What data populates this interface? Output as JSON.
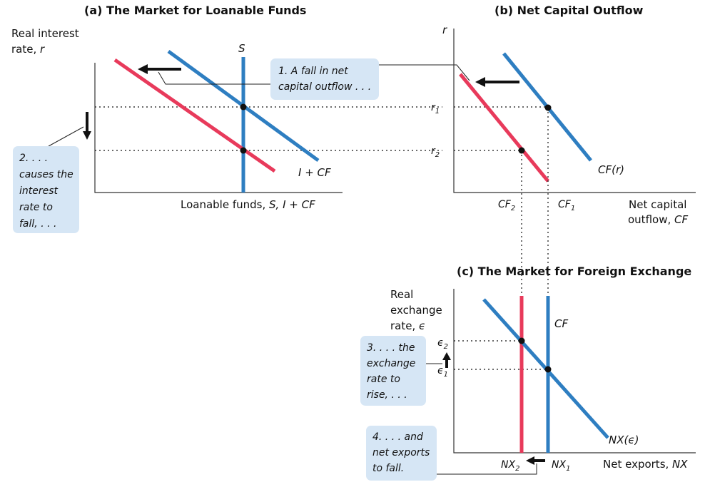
{
  "panel_a": {
    "title": "(a) The Market for Loanable Funds",
    "ylabel_line1": "Real interest",
    "ylabel_line2": "rate, ",
    "ylabel_var": "r",
    "xlabel_text": "Loanable funds, ",
    "xlabel_var": "S, I + CF",
    "supply_label": "S",
    "demand_label": "I + CF"
  },
  "panel_b": {
    "title": "(b) Net Capital Outflow",
    "ylabel": "r",
    "r1": "r",
    "r1_sub": "1",
    "r2": "r",
    "r2_sub": "2",
    "cf1": "CF",
    "cf1_sub": "1",
    "cf2": "CF",
    "cf2_sub": "2",
    "curve_label": "CF(r)",
    "xlabel_line1": "Net capital",
    "xlabel_line2": "outflow, ",
    "xlabel_var": "CF"
  },
  "panel_c": {
    "title": "(c) The Market for Foreign Exchange",
    "ylabel_line1": "Real",
    "ylabel_line2": "exchange",
    "ylabel_line3": "rate, ",
    "ylabel_var": "ϵ",
    "e1": "ϵ",
    "e1_sub": "1",
    "e2": "ϵ",
    "e2_sub": "2",
    "nx1": "NX",
    "nx1_sub": "1",
    "nx2": "NX",
    "nx2_sub": "2",
    "cf_label": "CF",
    "curve_label": "NX(ϵ)",
    "xlabel_text": "Net exports, ",
    "xlabel_var": "NX"
  },
  "notes": {
    "n1": [
      "1. A fall in net",
      "capital outflow . . ."
    ],
    "n2": [
      "2. . . .",
      "causes the",
      "interest",
      "rate to",
      "fall, . . ."
    ],
    "n3": [
      "3. . . . the",
      "exchange",
      "rate to",
      "rise, . . ."
    ],
    "n4": [
      "4. . . . and",
      "net exports",
      "to fall."
    ]
  },
  "colors": {
    "blue": "#2e7ec1",
    "red": "#e83a5b",
    "note_box": "#d6e6f5"
  }
}
